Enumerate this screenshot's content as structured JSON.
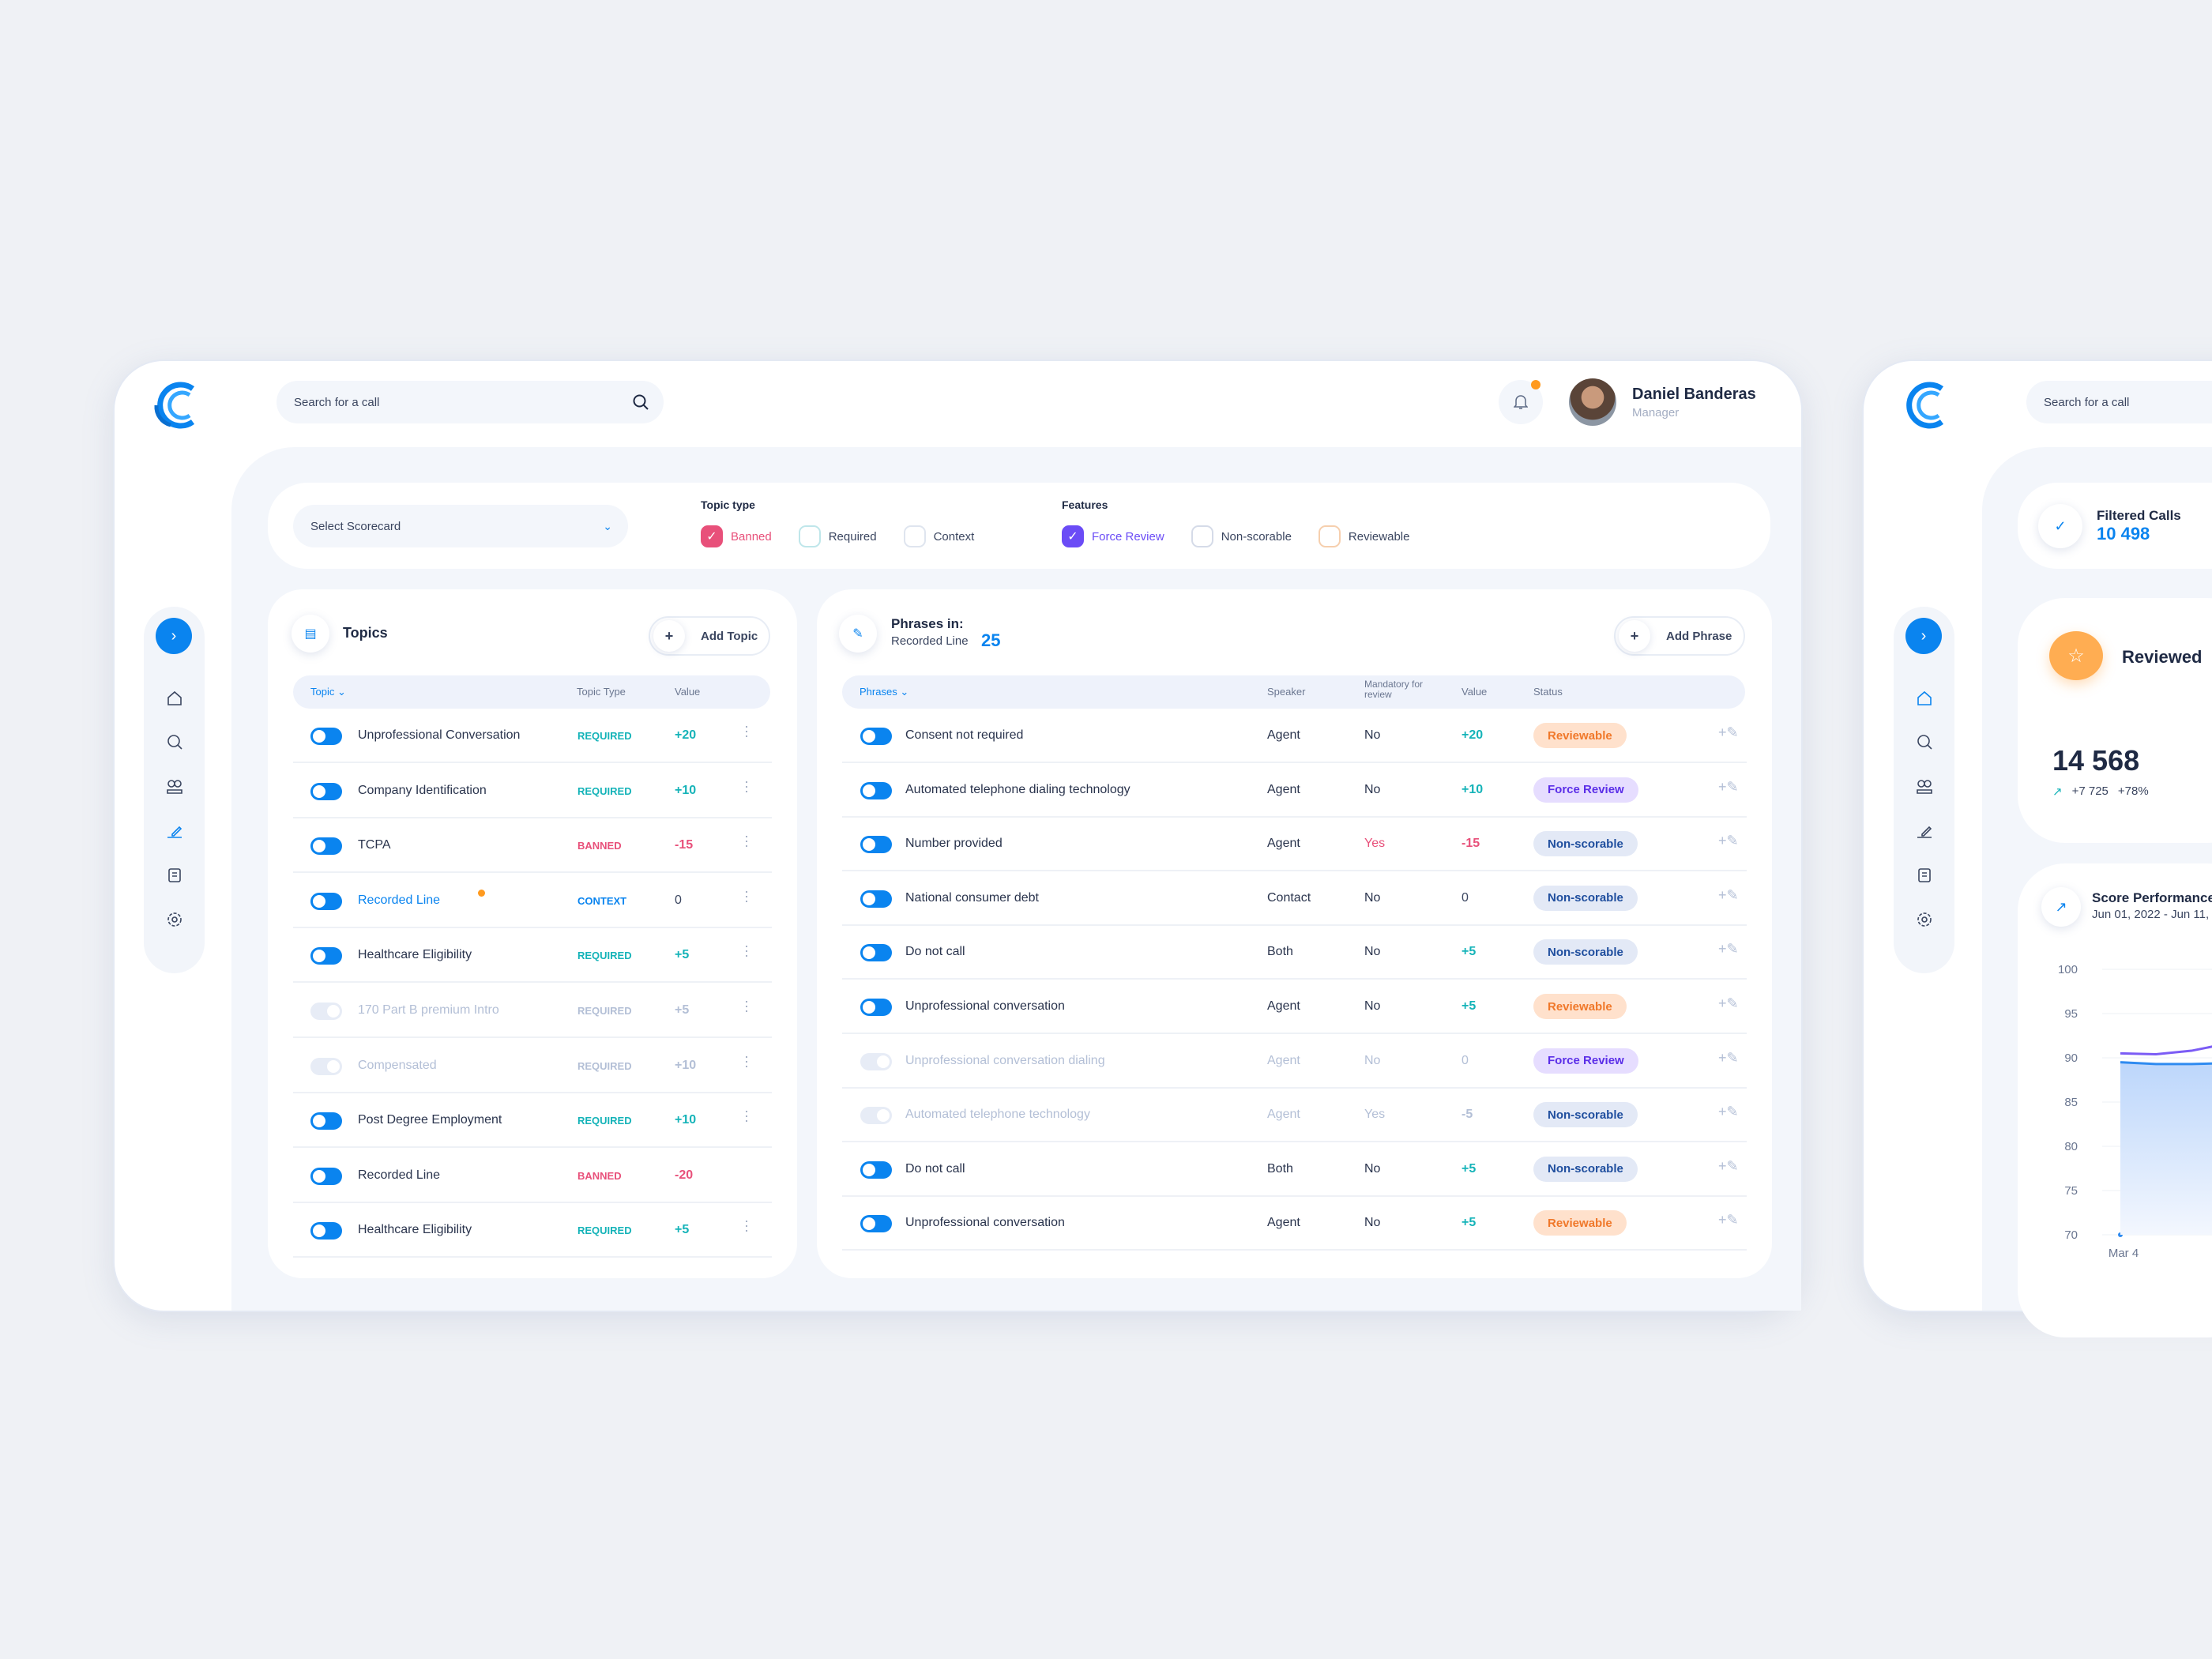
{
  "header": {
    "search_placeholder": "Search for a call",
    "user_name": "Daniel Banderas",
    "user_role": "Manager"
  },
  "filters": {
    "scorecard_placeholder": "Select Scorecard",
    "topic_type_label": "Topic type",
    "topic_types": [
      {
        "label": "Banned",
        "checked": true,
        "color": "#e8507a"
      },
      {
        "label": "Required",
        "checked": false,
        "color": "#bfe6ea"
      },
      {
        "label": "Context",
        "checked": false,
        "color": "#dfe5ef"
      }
    ],
    "features_label": "Features",
    "features": [
      {
        "label": "Force Review",
        "checked": true,
        "color": "#6b4cf6"
      },
      {
        "label": "Non-scorable",
        "checked": false,
        "color": "#d5dbe8"
      },
      {
        "label": "Reviewable",
        "checked": false,
        "color": "#f6cfae"
      }
    ]
  },
  "topics": {
    "title": "Topics",
    "add_label": "Add Topic",
    "col_topic": "Topic",
    "col_type": "Topic Type",
    "col_value": "Value",
    "rows": [
      {
        "name": "Unprofessional Conversation",
        "type": "REQUIRED",
        "value": "+20",
        "enabled": true,
        "menu": true
      },
      {
        "name": "Company Identification",
        "type": "REQUIRED",
        "value": "+10",
        "enabled": true,
        "menu": true
      },
      {
        "name": "TCPA",
        "type": "BANNED",
        "value": "-15",
        "enabled": true,
        "menu": true
      },
      {
        "name": "Recorded Line",
        "type": "CONTEXT",
        "value": "0",
        "enabled": true,
        "menu": true,
        "selected": true
      },
      {
        "name": "Healthcare Eligibility",
        "type": "REQUIRED",
        "value": "+5",
        "enabled": true,
        "menu": true
      },
      {
        "name": "170 Part B premium Intro",
        "type": "REQUIRED",
        "value": "+5",
        "enabled": false,
        "menu": true
      },
      {
        "name": "Compensated",
        "type": "REQUIRED",
        "value": "+10",
        "enabled": false,
        "menu": true
      },
      {
        "name": "Post Degree Employment",
        "type": "REQUIRED",
        "value": "+10",
        "enabled": true,
        "menu": true
      },
      {
        "name": "Recorded Line",
        "type": "BANNED",
        "value": "-20",
        "enabled": true,
        "menu": false
      },
      {
        "name": "Healthcare Eligibility",
        "type": "REQUIRED",
        "value": "+5",
        "enabled": true,
        "menu": true
      }
    ]
  },
  "phrases": {
    "title": "Phrases in:",
    "subtitle": "Recorded Line",
    "count": "25",
    "add_label": "Add Phrase",
    "col_phrase": "Phrases",
    "col_speaker": "Speaker",
    "col_mandatory": "Mandatory for review",
    "col_value": "Value",
    "col_status": "Status",
    "rows": [
      {
        "name": "Consent not required",
        "speaker": "Agent",
        "mandatory": "No",
        "value": "+20",
        "status": "Reviewable",
        "enabled": true
      },
      {
        "name": "Automated telephone dialing technology",
        "speaker": "Agent",
        "mandatory": "No",
        "value": "+10",
        "status": "Force Review",
        "enabled": true
      },
      {
        "name": "Number provided",
        "speaker": "Agent",
        "mandatory": "Yes",
        "value": "-15",
        "status": "Non-scorable",
        "enabled": true
      },
      {
        "name": "National consumer debt",
        "speaker": "Contact",
        "mandatory": "No",
        "value": "0",
        "status": "Non-scorable",
        "enabled": true
      },
      {
        "name": "Do not call",
        "speaker": "Both",
        "mandatory": "No",
        "value": "+5",
        "status": "Non-scorable",
        "enabled": true
      },
      {
        "name": "Unprofessional conversation",
        "speaker": "Agent",
        "mandatory": "No",
        "value": "+5",
        "status": "Reviewable",
        "enabled": true
      },
      {
        "name": "Unprofessional conversation dialing",
        "speaker": "Agent",
        "mandatory": "No",
        "value": "0",
        "status": "Force Review",
        "enabled": false
      },
      {
        "name": "Automated telephone technology",
        "speaker": "Agent",
        "mandatory": "Yes",
        "value": "-5",
        "status": "Non-scorable",
        "enabled": false
      },
      {
        "name": "Do not call",
        "speaker": "Both",
        "mandatory": "No",
        "value": "+5",
        "status": "Non-scorable",
        "enabled": true
      },
      {
        "name": "Unprofessional conversation",
        "speaker": "Agent",
        "mandatory": "No",
        "value": "+5",
        "status": "Reviewable",
        "enabled": true
      }
    ]
  },
  "colors": {
    "primary": "#0a84ef",
    "required": "#14b3b8",
    "banned": "#e8507a",
    "context": "#0a84ef",
    "accent_orange": "#ff9a1f"
  },
  "right_panel": {
    "search_placeholder": "Search for a call",
    "filtered_label": "Filtered Calls",
    "filtered_value": "10 498",
    "reviewed_label": "Reviewed",
    "reviewed_value": "14 568",
    "reviewed_delta": "+7 725",
    "reviewed_pct": "+78%",
    "score_title": "Score Performance",
    "score_range": "Jun 01, 2022 - Jun 11,"
  },
  "chart_data": {
    "type": "area",
    "y_ticks": [
      "100",
      "95",
      "90",
      "85",
      "80",
      "75",
      "70"
    ],
    "ylim": [
      70,
      100
    ],
    "x_ticks": [
      "Mar 4"
    ],
    "series": [
      {
        "color": "#7b5cf5",
        "values": [
          90.5,
          90.4,
          90.8,
          91.6,
          92.8
        ]
      },
      {
        "color": "#2f8bf0",
        "values": [
          89.5,
          89.3,
          89.3,
          89.4,
          89.6
        ]
      }
    ]
  }
}
